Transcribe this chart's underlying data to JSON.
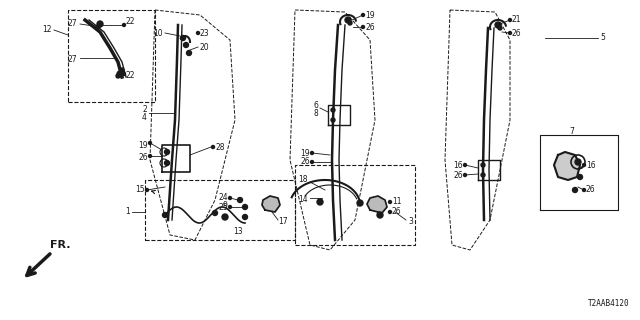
{
  "diagram_id": "T2AAB4120",
  "bg_color": "#ffffff",
  "line_color": "#1a1a1a",
  "label_fontsize": 5.5,
  "fig_w": 6.4,
  "fig_h": 3.2,
  "dpi": 100
}
